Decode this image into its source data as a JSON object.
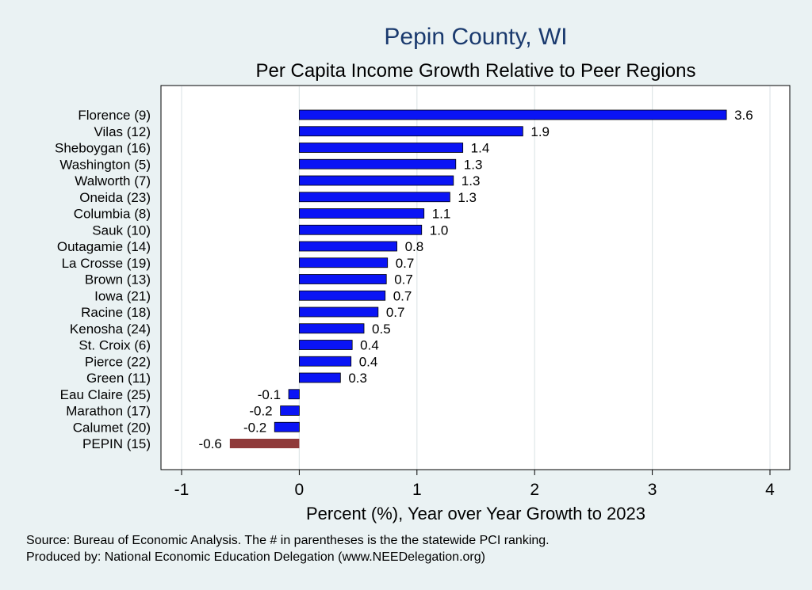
{
  "chart_data": {
    "type": "bar",
    "orientation": "horizontal",
    "title": "Pepin County, WI",
    "subtitle": "Per Capita Income Growth Relative to Peer Regions",
    "xlabel": "Percent (%), Year over Year Growth to 2023",
    "ylabel": "",
    "xlim": [
      -1,
      4
    ],
    "xticks": [
      "-1",
      "0",
      "1",
      "2",
      "3",
      "4"
    ],
    "grid": true,
    "categories": [
      "Florence  (9)",
      "Vilas (12)",
      "Sheboygan (16)",
      "Washington  (5)",
      "Walworth  (7)",
      "Oneida (23)",
      "Columbia  (8)",
      "Sauk (10)",
      "Outagamie (14)",
      "La Crosse (19)",
      "Brown (13)",
      "Iowa (21)",
      "Racine (18)",
      "Kenosha (24)",
      "St. Croix  (6)",
      "Pierce (22)",
      "Green (11)",
      "Eau Claire (25)",
      "Marathon (17)",
      "Calumet (20)",
      "PEPIN (15)"
    ],
    "values": [
      3.63,
      1.9,
      1.39,
      1.33,
      1.31,
      1.28,
      1.06,
      1.04,
      0.83,
      0.75,
      0.74,
      0.73,
      0.67,
      0.55,
      0.45,
      0.44,
      0.35,
      -0.09,
      -0.16,
      -0.21,
      -0.59
    ],
    "value_labels": [
      "3.6",
      "1.9",
      "1.4",
      "1.3",
      "1.3",
      "1.3",
      "1.1",
      "1.0",
      "0.8",
      "0.7",
      "0.7",
      "0.7",
      "0.7",
      "0.5",
      "0.4",
      "0.4",
      "0.3",
      "-0.1",
      "-0.2",
      "-0.2",
      "-0.6"
    ],
    "highlight_index": 20,
    "colors": {
      "bar": "#0a14f5",
      "highlight": "#8f3a3a",
      "grid": "#dfe6e8",
      "background": "#eaf2f3",
      "plot_bg": "#ffffff",
      "title": "#1a3a6e"
    }
  },
  "footer": {
    "source": "Source: Bureau of Economic Analysis. The # in parentheses is the the statewide PCI ranking.",
    "produced": "Produced by: National Economic Education Delegation (www.NEEDelegation.org)"
  }
}
